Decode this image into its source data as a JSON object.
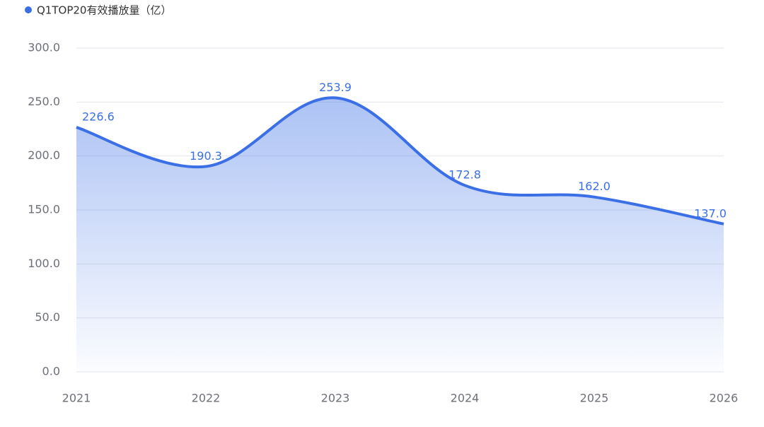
{
  "chart_data": {
    "type": "area",
    "legend_position": "top-left",
    "grid": true,
    "smooth": true,
    "categories": [
      "2021",
      "2022",
      "2023",
      "2024",
      "2025",
      "2026"
    ],
    "series": [
      {
        "name": "Q1TOP20有效播放量（亿）",
        "color": "#3a6fe6",
        "values": [
          226.6,
          190.3,
          253.9,
          172.8,
          162.0,
          137.0
        ],
        "value_labels": [
          "226.6",
          "190.3",
          "253.9",
          "172.8",
          "162.0",
          "137.0"
        ]
      }
    ],
    "ylim": [
      0,
      300
    ],
    "yticks": [
      {
        "value": 0,
        "label": "0.0"
      },
      {
        "value": 50,
        "label": "50.0"
      },
      {
        "value": 100,
        "label": "100.0"
      },
      {
        "value": 150,
        "label": "150.0"
      },
      {
        "value": 200,
        "label": "200.0"
      },
      {
        "value": 250,
        "label": "250.0"
      },
      {
        "value": 300,
        "label": "300.0"
      }
    ]
  }
}
